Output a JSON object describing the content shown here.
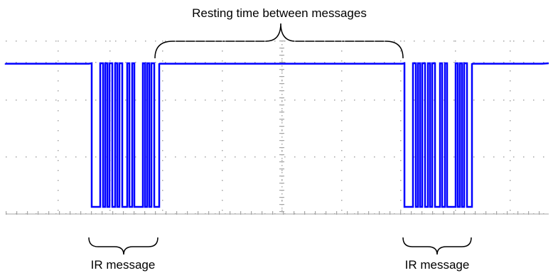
{
  "annotations": {
    "resting_label": "Resting time between messages",
    "ir_message_left": "IR message",
    "ir_message_right": "IR message"
  },
  "colors": {
    "signal": "#0000ff",
    "grid": "#a6a6a6",
    "text": "#000000",
    "brace": "#000000"
  },
  "icons": {
    "brace": "curly-brace",
    "signal": "square-wave-trace"
  }
}
